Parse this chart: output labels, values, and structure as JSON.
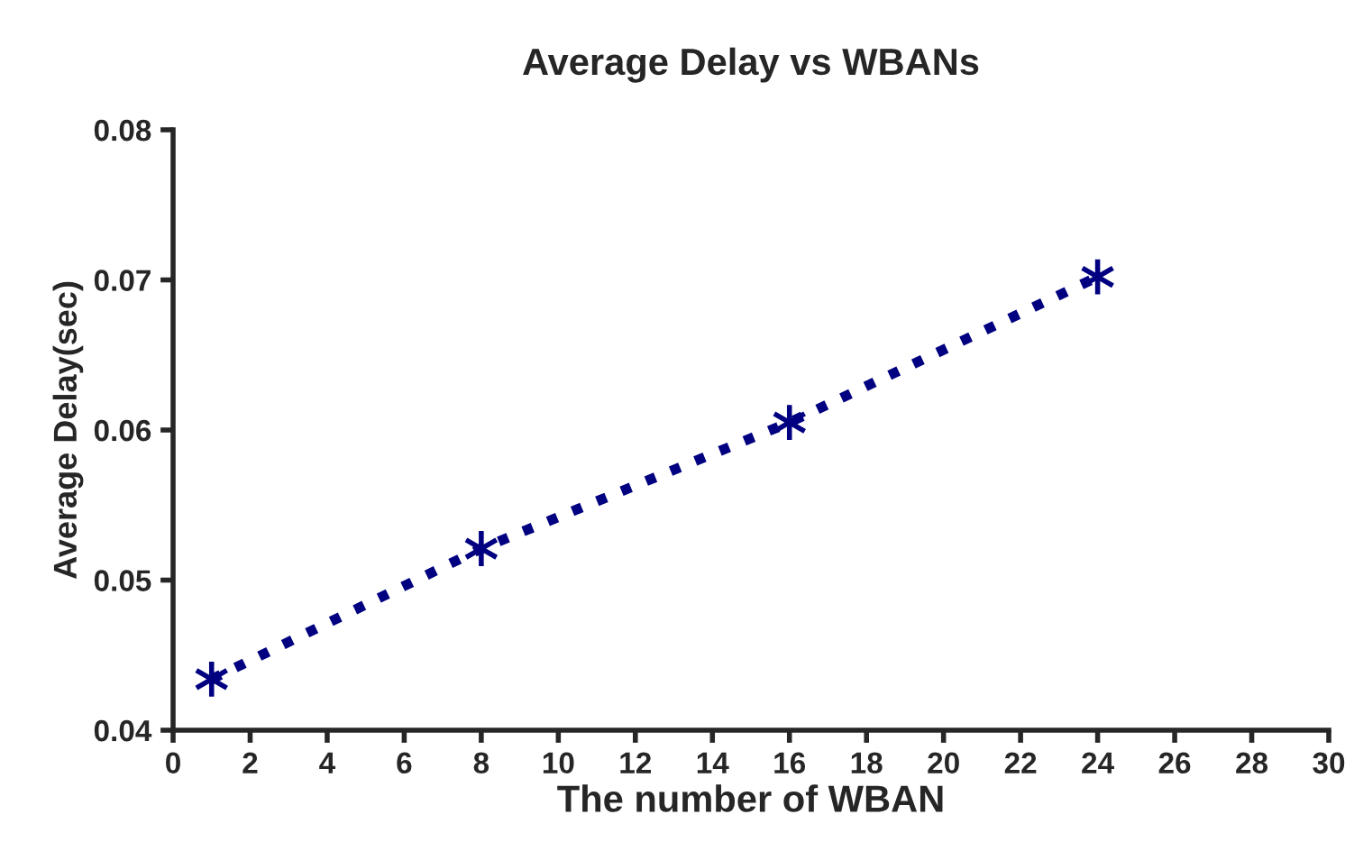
{
  "chart_data": {
    "type": "line",
    "title": "Average Delay vs WBANs",
    "xlabel": "The number of WBAN",
    "ylabel": "Average Delay(sec)",
    "x": [
      1,
      8,
      16,
      24
    ],
    "series": [
      {
        "color": "#000080",
        "values": [
          0.0434,
          0.0521,
          0.0605,
          0.0702
        ]
      }
    ],
    "xlim": [
      0,
      30
    ],
    "xticks": [
      0,
      2,
      4,
      6,
      8,
      10,
      12,
      14,
      16,
      18,
      20,
      22,
      24,
      26,
      28,
      30
    ],
    "ylim": [
      0.04,
      0.08
    ],
    "yticks": [
      {
        "value": 0.04,
        "label": "0.04"
      },
      {
        "value": 0.05,
        "label": "0.05"
      },
      {
        "value": 0.06,
        "label": "0.06"
      },
      {
        "value": 0.07,
        "label": "0.07"
      },
      {
        "value": 0.08,
        "label": "0.08"
      }
    ],
    "grid": false,
    "marker": "cross",
    "line_style": "dotted"
  }
}
